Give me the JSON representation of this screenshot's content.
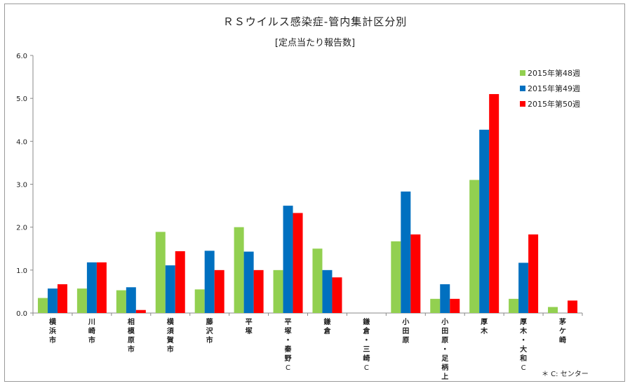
{
  "chart_data": {
    "type": "bar",
    "title": "ＲＳウイルス感染症-管内集計区分別",
    "subtitle": "[定点当たり報告数]",
    "ylim": [
      0,
      6
    ],
    "yticks": [
      "0.0",
      "1.0",
      "2.0",
      "3.0",
      "4.0",
      "5.0",
      "6.0"
    ],
    "grid": false,
    "legend_position": "top-right",
    "categories": [
      [
        "横",
        "浜",
        "市"
      ],
      [
        "川",
        "崎",
        "市"
      ],
      [
        "相",
        "模",
        "原",
        "市"
      ],
      [
        "横",
        "須",
        "賀",
        "市"
      ],
      [
        "藤",
        "沢",
        "市"
      ],
      [
        "平",
        "塚"
      ],
      [
        "平",
        "塚",
        "・",
        "秦",
        "野",
        "C"
      ],
      [
        "鎌",
        "倉"
      ],
      [
        "鎌",
        "倉",
        "・",
        "三",
        "崎",
        "C"
      ],
      [
        "小",
        "田",
        "原"
      ],
      [
        "小",
        "田",
        "原",
        "・",
        "足",
        "柄",
        "上"
      ],
      [
        "厚",
        "木"
      ],
      [
        "厚",
        "木",
        "・",
        "大",
        "和",
        "C"
      ],
      [
        "茅",
        "ケ",
        "崎"
      ]
    ],
    "series": [
      {
        "name": "2015年第48週",
        "color": "#92d050",
        "values": [
          0.35,
          0.57,
          0.53,
          1.89,
          0.55,
          2.0,
          1.0,
          1.5,
          0,
          1.67,
          0.33,
          3.1,
          0.33,
          0.14
        ]
      },
      {
        "name": "2015年第49週",
        "color": "#0070c0",
        "values": [
          0.57,
          1.18,
          0.6,
          1.11,
          1.45,
          1.43,
          2.5,
          1.0,
          0,
          2.83,
          0.67,
          4.27,
          1.17,
          0
        ]
      },
      {
        "name": "2015年第50週",
        "color": "#ff0000",
        "values": [
          0.67,
          1.18,
          0.07,
          1.44,
          1.0,
          1.0,
          2.33,
          0.83,
          0,
          1.83,
          0.33,
          5.1,
          1.83,
          0.29
        ]
      }
    ]
  },
  "footnote": "＊ C: センター",
  "c_mark": "C"
}
